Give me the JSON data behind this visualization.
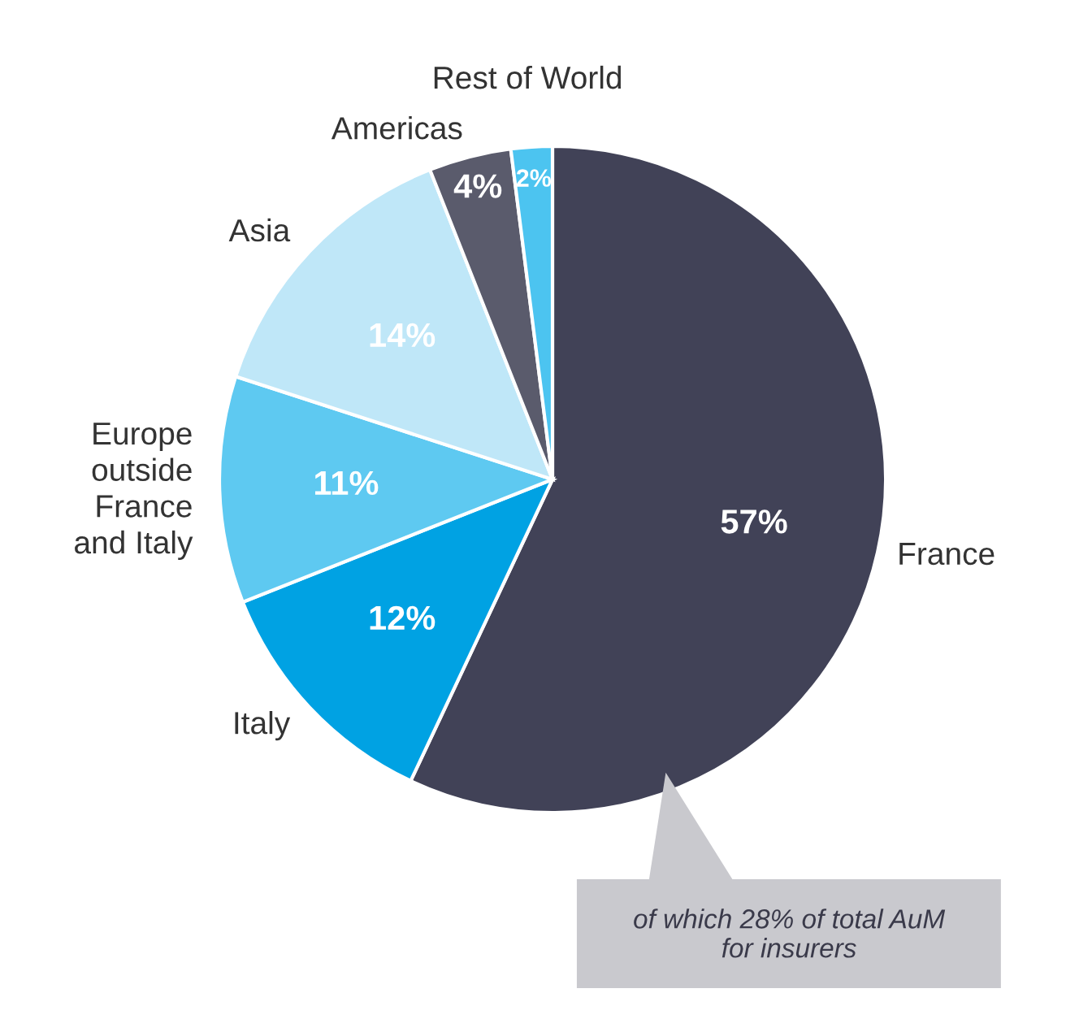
{
  "chart_data": {
    "type": "pie",
    "categories": [
      "France",
      "Italy",
      "Europe\noutside\nFrance\nand Italy",
      "Asia",
      "Americas",
      "Rest of World"
    ],
    "values": [
      57,
      12,
      11,
      14,
      4,
      2
    ],
    "value_labels": [
      "57%",
      "12%",
      "11%",
      "14%",
      "4%",
      "2%"
    ],
    "colors": [
      "#414257",
      "#00a2e3",
      "#5ec9f1",
      "#bfe7f8",
      "#5a5b6c",
      "#4cc4f0"
    ],
    "annotations": [
      "of which 28% of total AuM\nfor insurers"
    ],
    "legend": false
  }
}
